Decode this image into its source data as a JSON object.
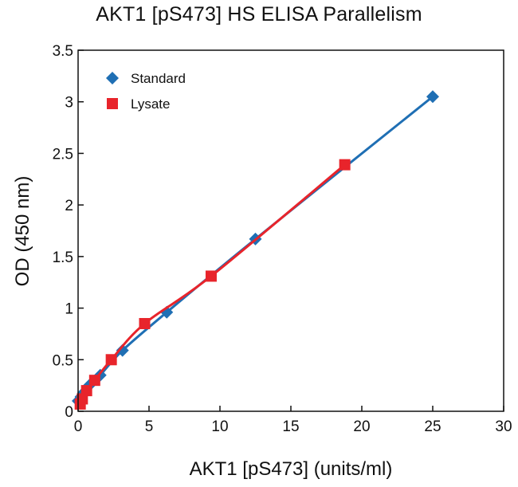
{
  "chart_data": {
    "type": "line",
    "title": "AKT1 [pS473] HS ELISA Parallelism",
    "xlabel": "AKT1 [pS473] (units/ml)",
    "ylabel": "OD (450 nm)",
    "xlim": [
      0,
      30
    ],
    "ylim": [
      0,
      3.5
    ],
    "xticks": [
      0,
      5,
      10,
      15,
      20,
      25,
      30
    ],
    "yticks": [
      0,
      0.5,
      1,
      1.5,
      2,
      2.5,
      3,
      3.5
    ],
    "xtick_labels": [
      "0",
      "5",
      "10",
      "15",
      "20",
      "25",
      "30"
    ],
    "ytick_labels": [
      "0",
      "0.5",
      "1",
      "1.5",
      "2",
      "2.5",
      "3",
      "3.5"
    ],
    "legend_position": "top-left",
    "series": [
      {
        "name": "Standard",
        "color": "#1f6fb4",
        "marker": "diamond",
        "x": [
          0.0,
          0.2,
          0.39,
          0.78,
          1.56,
          3.13,
          6.25,
          12.5,
          25.0
        ],
        "y": [
          0.1,
          0.14,
          0.18,
          0.25,
          0.35,
          0.59,
          0.96,
          1.67,
          3.05
        ]
      },
      {
        "name": "Lysate",
        "color": "#e8242b",
        "marker": "square",
        "x": [
          0.15,
          0.3,
          0.6,
          1.17,
          2.34,
          4.69,
          9.38,
          18.8
        ],
        "y": [
          0.07,
          0.12,
          0.2,
          0.3,
          0.5,
          0.85,
          1.31,
          2.39
        ]
      }
    ]
  }
}
